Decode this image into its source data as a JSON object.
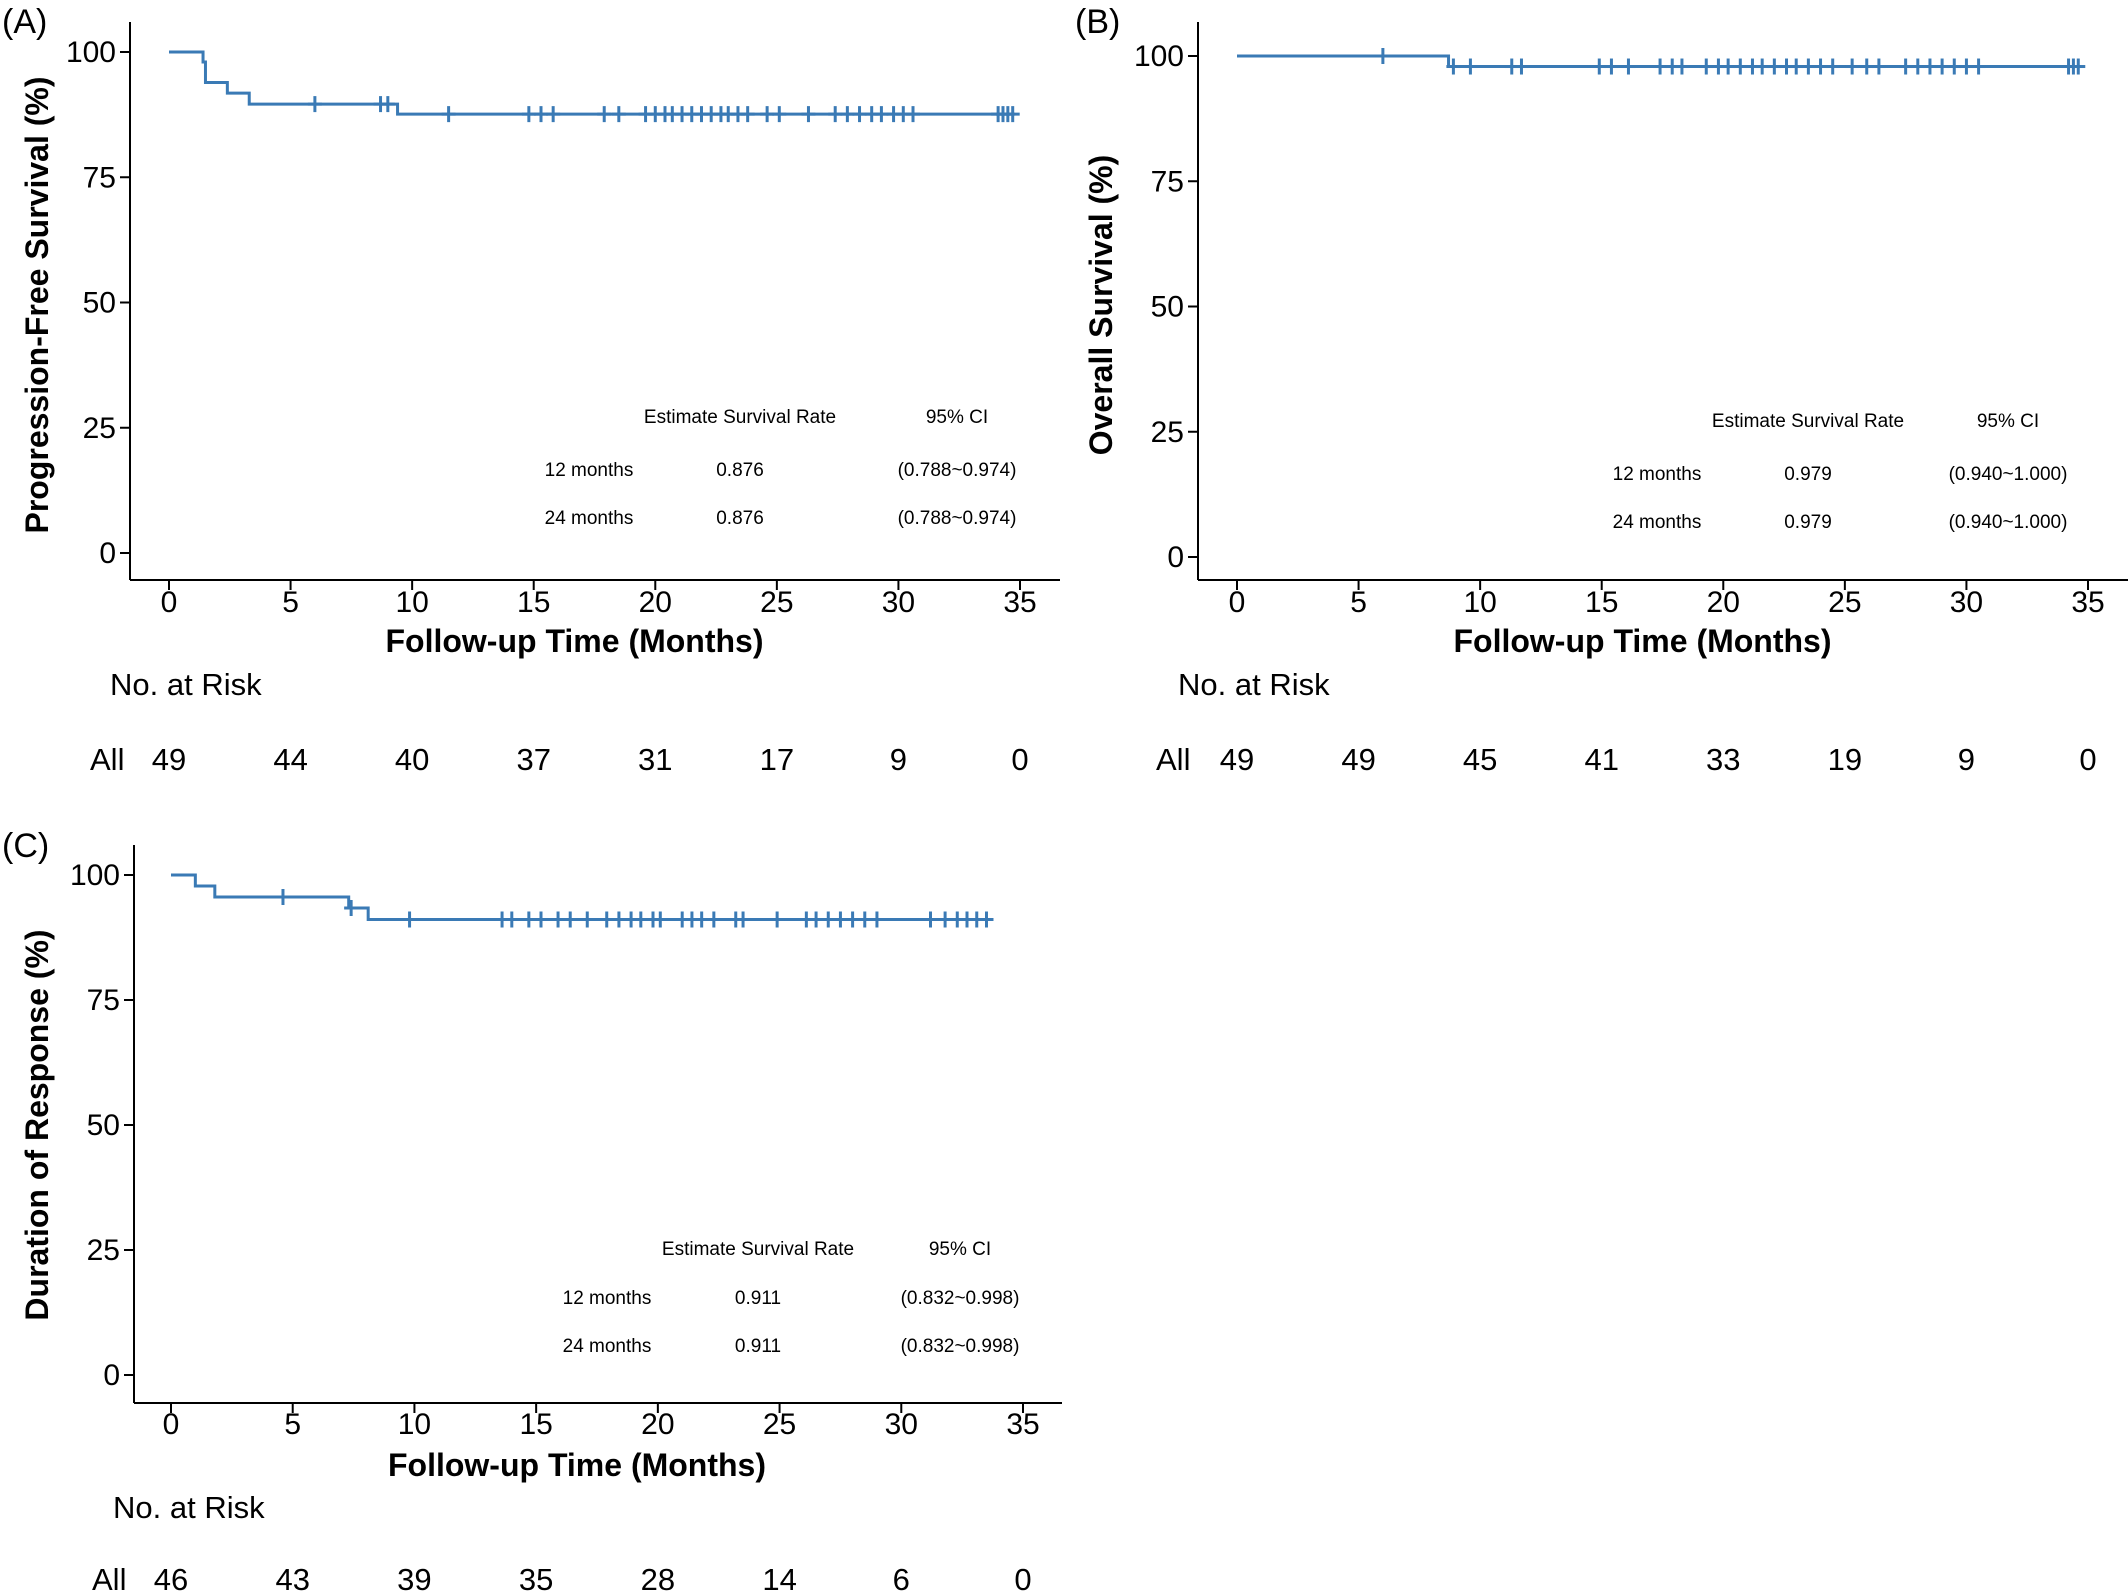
{
  "chart_data": [
    {
      "type": "line",
      "panel_label": "(A)",
      "xlabel": "Follow-up Time (Months)",
      "ylabel": "Progression-Free Survival (%)",
      "xlim": [
        0,
        35
      ],
      "ylim": [
        0,
        100
      ],
      "x_ticks": [
        0,
        5,
        10,
        15,
        20,
        25,
        30,
        35
      ],
      "y_ticks": [
        0,
        25,
        50,
        75,
        100
      ],
      "color": "#3a7ab5",
      "series": [
        {
          "steps": [
            [
              0,
              100
            ],
            [
              1.4,
              98
            ],
            [
              1.5,
              93.9
            ],
            [
              2.4,
              91.8
            ],
            [
              3.3,
              89.6
            ],
            [
              9.4,
              87.6
            ],
            [
              34.7,
              87.6
            ]
          ],
          "censored": [
            6.0,
            8.7,
            9.0,
            11.5,
            14.8,
            15.3,
            15.8,
            17.9,
            18.5,
            19.6,
            20.0,
            20.4,
            20.7,
            21.1,
            21.5,
            21.9,
            22.3,
            22.7,
            23.0,
            23.4,
            23.8,
            24.6,
            25.1,
            26.3,
            27.4,
            27.9,
            28.4,
            28.9,
            29.3,
            29.8,
            30.2,
            30.6,
            34.1,
            34.3,
            34.5,
            34.7
          ]
        }
      ],
      "summary_table": {
        "headers": [
          "",
          "Estimate Survival Rate",
          "95% CI"
        ],
        "rows": [
          [
            "12 months",
            "0.876",
            "(0.788~0.974)"
          ],
          [
            "24 months",
            "0.876",
            "(0.788~0.974)"
          ]
        ]
      },
      "risk_table": {
        "title": "No. at Risk",
        "row_label": "All",
        "times": [
          0,
          5,
          10,
          15,
          20,
          25,
          30,
          35
        ],
        "values": [
          "49",
          "44",
          "40",
          "37",
          "31",
          "17",
          "9",
          "0"
        ]
      }
    },
    {
      "type": "line",
      "panel_label": "(B)",
      "xlabel": "Follow-up Time (Months)",
      "ylabel": "Overall Survival (%)",
      "xlim": [
        0,
        35
      ],
      "ylim": [
        0,
        100
      ],
      "x_ticks": [
        0,
        5,
        10,
        15,
        20,
        25,
        30,
        35
      ],
      "y_ticks": [
        0,
        25,
        50,
        75,
        100
      ],
      "color": "#3a7ab5",
      "series": [
        {
          "steps": [
            [
              0,
              100
            ],
            [
              8.7,
              97.9
            ],
            [
              34.7,
              97.9
            ]
          ],
          "censored": [
            6.0,
            8.9,
            9.6,
            11.3,
            11.7,
            14.9,
            15.4,
            16.1,
            17.4,
            17.9,
            18.3,
            19.3,
            19.8,
            20.2,
            20.7,
            21.2,
            21.6,
            22.1,
            22.6,
            23.0,
            23.5,
            24.0,
            24.5,
            25.3,
            25.9,
            26.4,
            27.5,
            28.0,
            28.5,
            29.0,
            29.5,
            30.0,
            30.5,
            34.2,
            34.4,
            34.6
          ]
        }
      ],
      "summary_table": {
        "headers": [
          "",
          "Estimate Survival Rate",
          "95% CI"
        ],
        "rows": [
          [
            "12 months",
            "0.979",
            "(0.940~1.000)"
          ],
          [
            "24 months",
            "0.979",
            "(0.940~1.000)"
          ]
        ]
      },
      "risk_table": {
        "title": "No. at Risk",
        "row_label": "All",
        "times": [
          0,
          5,
          10,
          15,
          20,
          25,
          30,
          35
        ],
        "values": [
          "49",
          "49",
          "45",
          "41",
          "33",
          "19",
          "9",
          "0"
        ]
      }
    },
    {
      "type": "line",
      "panel_label": "(C)",
      "xlabel": "Follow-up Time (Months)",
      "ylabel": "Duration of Response (%)",
      "xlim": [
        0,
        35
      ],
      "ylim": [
        0,
        100
      ],
      "x_ticks": [
        0,
        5,
        10,
        15,
        20,
        25,
        30,
        35
      ],
      "y_ticks": [
        0,
        25,
        50,
        75,
        100
      ],
      "color": "#3a7ab5",
      "series": [
        {
          "steps": [
            [
              0,
              100
            ],
            [
              1.0,
              97.8
            ],
            [
              1.8,
              95.6
            ],
            [
              7.3,
              93.4
            ],
            [
              8.1,
              91.1
            ],
            [
              33.6,
              91.1
            ]
          ],
          "censored": [
            4.6,
            7.4,
            9.8,
            13.6,
            14.0,
            14.7,
            15.2,
            15.9,
            16.4,
            17.1,
            17.9,
            18.4,
            18.9,
            19.3,
            19.8,
            20.1,
            21.0,
            21.4,
            21.8,
            22.3,
            23.2,
            23.5,
            24.9,
            26.1,
            26.5,
            27.0,
            27.5,
            28.0,
            28.5,
            29.0,
            31.2,
            31.8,
            32.3,
            32.7,
            33.1,
            33.5
          ]
        }
      ],
      "summary_table": {
        "headers": [
          "",
          "Estimate Survival Rate",
          "95% CI"
        ],
        "rows": [
          [
            "12 months",
            "0.911",
            "(0.832~0.998)"
          ],
          [
            "24 months",
            "0.911",
            "(0.832~0.998)"
          ]
        ]
      },
      "risk_table": {
        "title": "No. at Risk",
        "row_label": "All",
        "times": [
          0,
          5,
          10,
          15,
          20,
          25,
          30,
          35
        ],
        "values": [
          "46",
          "43",
          "39",
          "35",
          "28",
          "14",
          "6",
          "0"
        ]
      }
    }
  ]
}
